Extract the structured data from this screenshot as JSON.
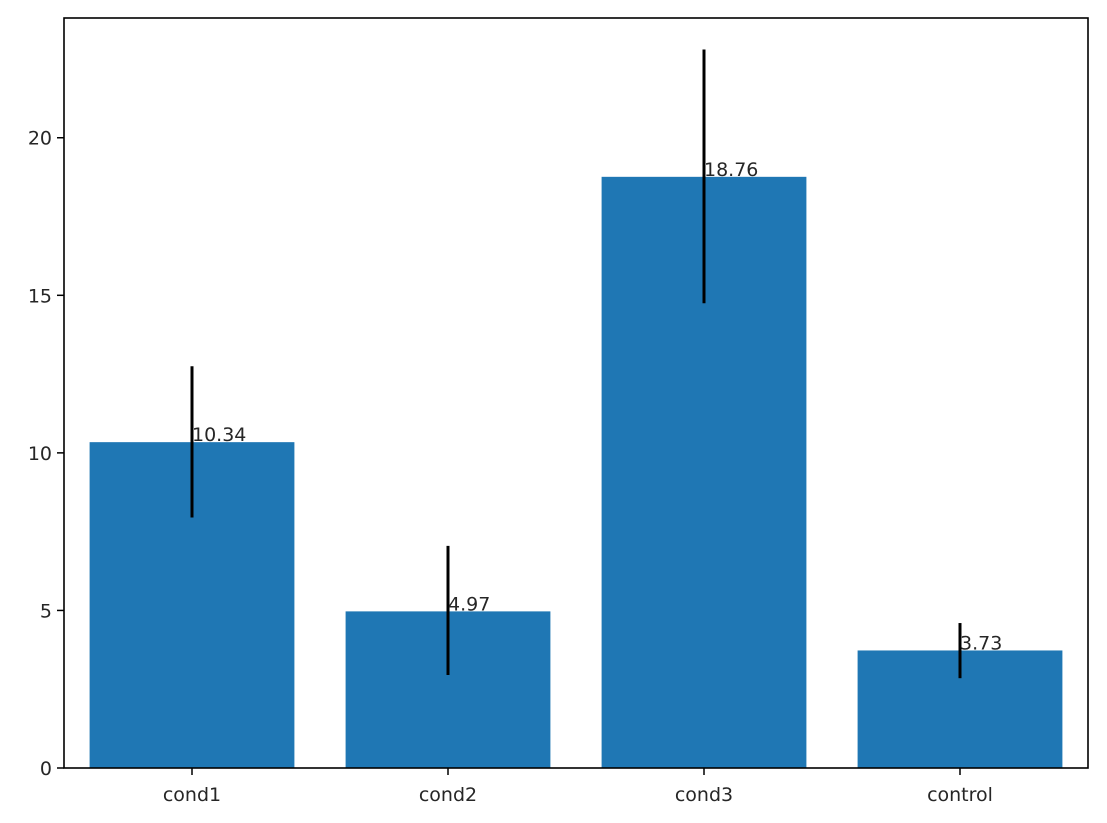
{
  "chart_data": {
    "type": "bar",
    "title": "",
    "xlabel": "",
    "ylabel": "",
    "categories": [
      "cond1",
      "cond2",
      "cond3",
      "control"
    ],
    "values": [
      10.34,
      4.97,
      18.76,
      3.73
    ],
    "value_labels": [
      "10.34",
      "4.97",
      "18.76",
      "3.73"
    ],
    "error_low": [
      7.95,
      2.95,
      14.75,
      2.85
    ],
    "error_high": [
      12.75,
      7.05,
      22.8,
      4.6
    ],
    "ylim": [
      0,
      23.8
    ],
    "yticks": [
      0,
      5,
      10,
      15,
      20
    ],
    "ytick_labels": [
      "0",
      "5",
      "10",
      "15",
      "20"
    ],
    "grid": false,
    "legend": "none",
    "colors": {
      "bar": "#1f77b4",
      "error_bar": "#000000",
      "axes": "#000000"
    }
  }
}
